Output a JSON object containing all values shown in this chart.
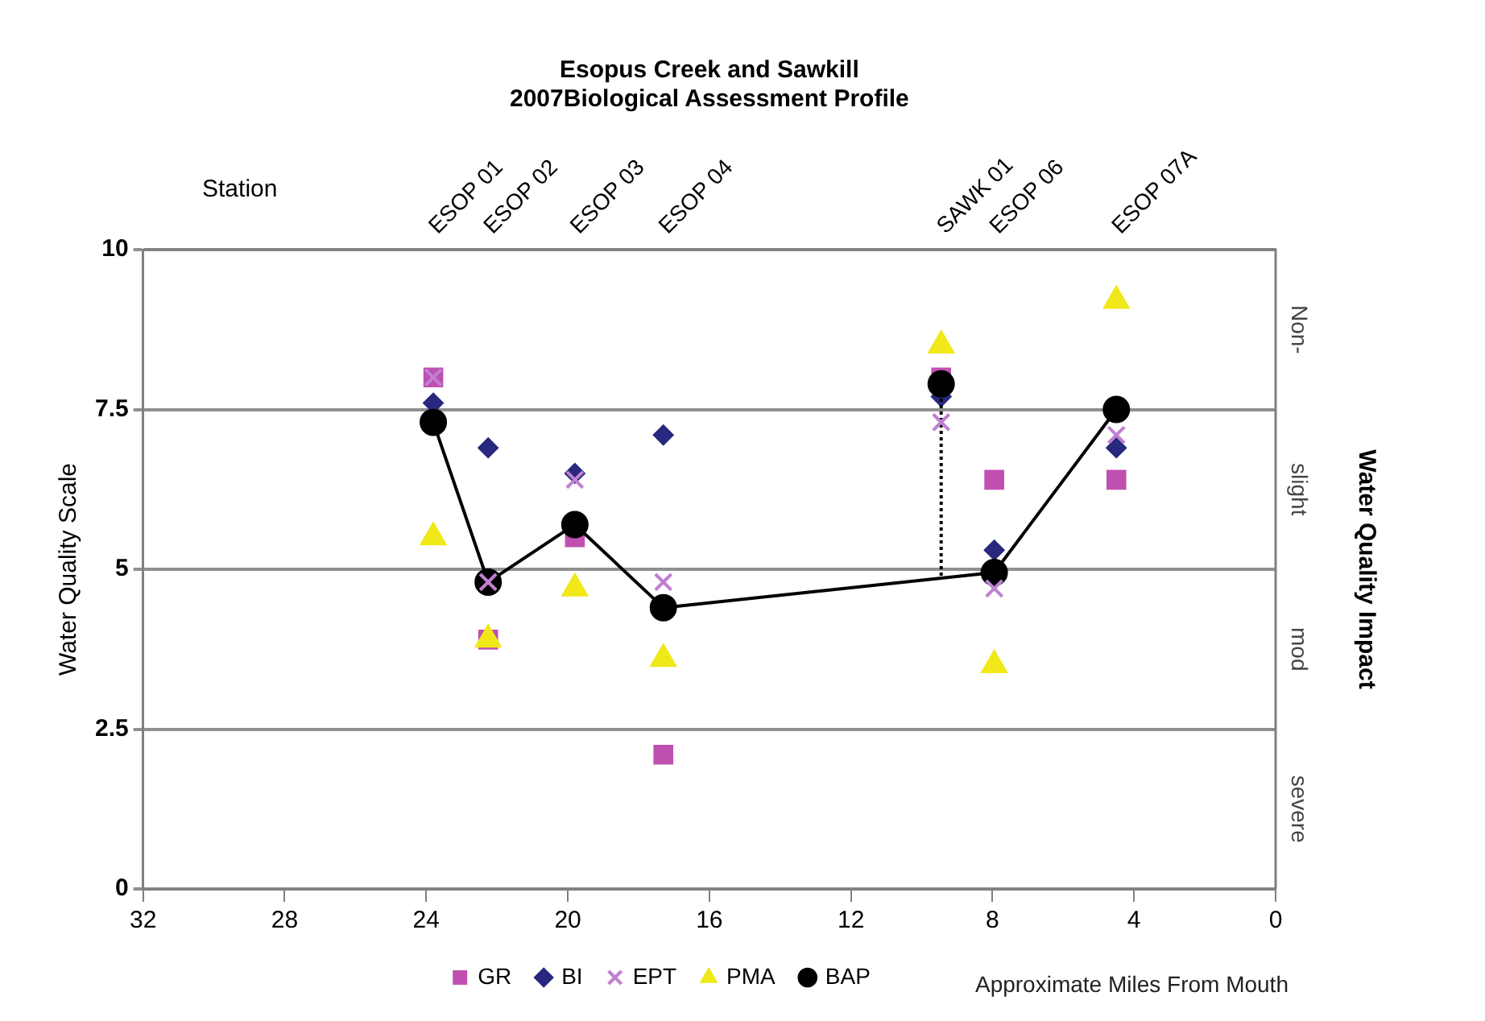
{
  "chart_data": {
    "type": "scatter",
    "title": "Esopus Creek and Sawkill\n2007Biological Assessment Profile",
    "xlabel": "Approximate Miles From Mouth",
    "ylabel": "Water Quality Scale",
    "y2label": "Water Quality Impact",
    "xlim": [
      32,
      0
    ],
    "xticks": [
      32,
      28,
      24,
      20,
      16,
      12,
      8,
      4,
      0
    ],
    "ylim": [
      0,
      10
    ],
    "yticks": [
      0,
      2.5,
      5,
      7.5,
      10
    ],
    "grid": "y",
    "legend": "bottom",
    "series": [
      {
        "name": "GR",
        "marker": "square",
        "color": "#c050b0",
        "x": [
          23.8,
          22.25,
          19.8,
          17.3,
          9.45,
          7.95,
          4.5
        ],
        "values": [
          8.0,
          3.9,
          5.5,
          2.1,
          8.0,
          6.4,
          6.4
        ]
      },
      {
        "name": "BI",
        "marker": "diamond",
        "color": "#28287f",
        "x": [
          23.8,
          22.25,
          19.8,
          17.3,
          9.45,
          7.95,
          4.5
        ],
        "values": [
          7.6,
          6.9,
          6.5,
          7.1,
          7.7,
          5.3,
          6.9
        ]
      },
      {
        "name": "EPT",
        "marker": "cross",
        "color": "#c080d0",
        "x": [
          23.8,
          22.25,
          19.8,
          17.3,
          9.45,
          7.95,
          4.5
        ],
        "values": [
          8.0,
          4.8,
          6.4,
          4.8,
          7.3,
          4.7,
          7.1
        ]
      },
      {
        "name": "PMA",
        "marker": "triangle",
        "color": "#f0e818",
        "x": [
          23.8,
          22.25,
          19.8,
          17.3,
          9.45,
          7.95,
          4.5
        ],
        "values": [
          5.5,
          3.9,
          4.7,
          3.6,
          8.5,
          3.5,
          9.2
        ]
      },
      {
        "name": "BAP",
        "type": "line",
        "marker": "circle",
        "line_style": "solid",
        "color": "#000000",
        "x": [
          23.8,
          22.25,
          19.8,
          17.3,
          7.95,
          4.5
        ],
        "values": [
          7.3,
          4.8,
          5.7,
          4.4,
          4.95,
          7.5
        ]
      },
      {
        "type": "scatter",
        "marker": "circle",
        "color": "#000000",
        "x": [
          9.45
        ],
        "values": [
          7.9
        ]
      },
      {
        "type": "line",
        "marker": "none",
        "line_style": "dotted",
        "color": "#000000",
        "x": [
          9.45,
          9.45
        ],
        "values": [
          4.9,
          7.9
        ]
      }
    ],
    "annotations": [
      "Station",
      "ESOP 01",
      "ESOP 02",
      "ESOP 03",
      "ESOP 04",
      "SAWK 01",
      "ESOP 06",
      "ESOP 07A",
      "Non-",
      "slight",
      "mod",
      "severe"
    ]
  }
}
